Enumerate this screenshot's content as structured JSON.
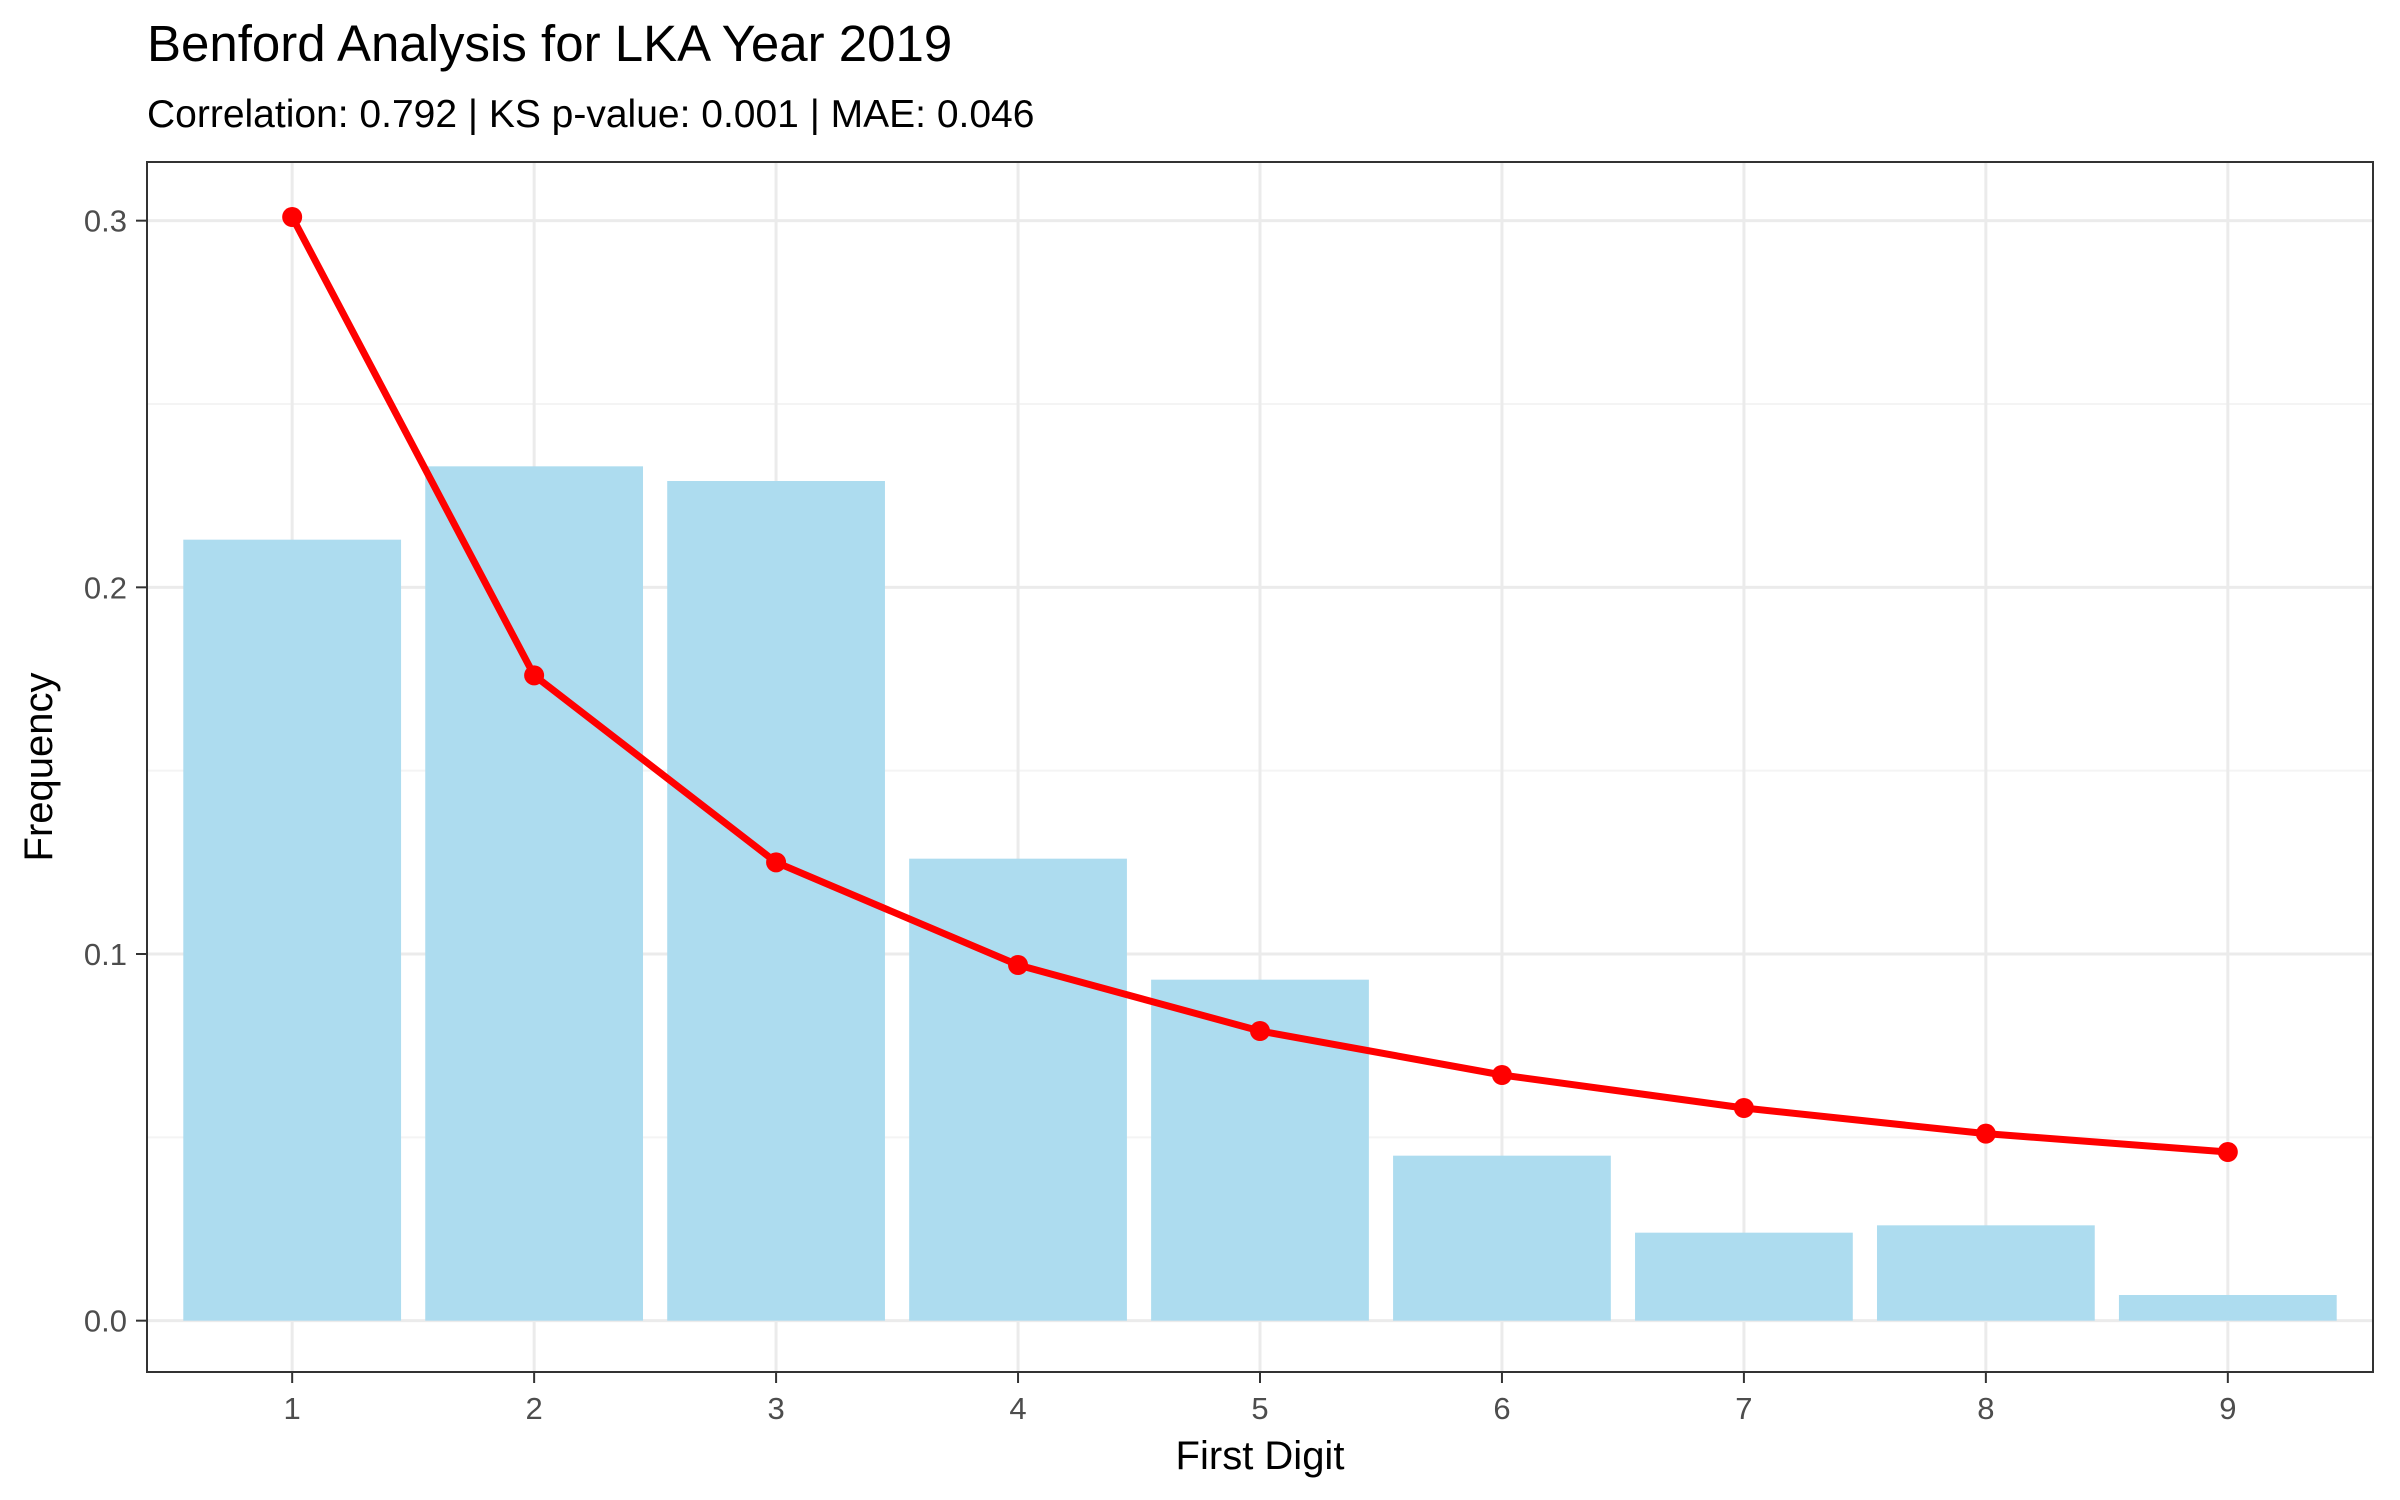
{
  "chart_data": {
    "type": "bar",
    "title": "Benford Analysis for LKA Year 2019",
    "subtitle": "Correlation: 0.792 | KS p-value: 0.001 | MAE: 0.046",
    "xlabel": "First Digit",
    "ylabel": "Frequency",
    "categories": [
      "1",
      "2",
      "3",
      "4",
      "5",
      "6",
      "7",
      "8",
      "9"
    ],
    "xlim": [
      0.4,
      9.6
    ],
    "ylim": [
      -0.014,
      0.316
    ],
    "yticks": [
      0.0,
      0.1,
      0.2,
      0.3
    ],
    "ytick_labels": [
      "0.0",
      "0.1",
      "0.2",
      "0.3"
    ],
    "grid": true,
    "series": [
      {
        "kind": "bar",
        "values": [
          0.213,
          0.233,
          0.229,
          0.126,
          0.093,
          0.045,
          0.024,
          0.026,
          0.007
        ],
        "color": "#87CEEB"
      },
      {
        "kind": "line",
        "values": [
          0.301,
          0.176,
          0.125,
          0.097,
          0.079,
          0.067,
          0.058,
          0.051,
          0.046
        ],
        "color": "#FF0000"
      }
    ],
    "colors": {
      "bar": "#ADDCEF",
      "line": "#FF0000",
      "grid_major": "#EBEBEB",
      "grid_minor": "#F4F4F4",
      "panel_border": "#333333",
      "tick_text": "#4D4D4D"
    }
  }
}
